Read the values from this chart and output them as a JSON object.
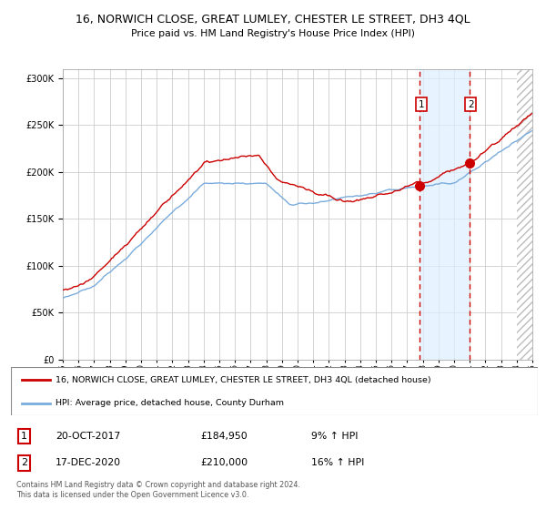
{
  "title_line1": "16, NORWICH CLOSE, GREAT LUMLEY, CHESTER LE STREET, DH3 4QL",
  "title_line2": "Price paid vs. HM Land Registry's House Price Index (HPI)",
  "red_label": "16, NORWICH CLOSE, GREAT LUMLEY, CHESTER LE STREET, DH3 4QL (detached house)",
  "blue_label": "HPI: Average price, detached house, County Durham",
  "point1_date": "20-OCT-2017",
  "point1_price": 184950,
  "point1_hpi": "9% ↑ HPI",
  "point2_date": "17-DEC-2020",
  "point2_price": 210000,
  "point2_hpi": "16% ↑ HPI",
  "footer": "Contains HM Land Registry data © Crown copyright and database right 2024.\nThis data is licensed under the Open Government Licence v3.0.",
  "red_color": "#cc0000",
  "blue_color": "#7aacdc",
  "bg_color": "#ffffff",
  "plot_bg": "#ffffff",
  "highlight_bg": "#ddeeff",
  "grid_color": "#cccccc",
  "ylim": [
    0,
    310000
  ],
  "yticks": [
    0,
    50000,
    100000,
    150000,
    200000,
    250000,
    300000
  ],
  "point1_x": 2017.79,
  "point2_x": 2020.96,
  "xmin": 1995,
  "xmax": 2025
}
